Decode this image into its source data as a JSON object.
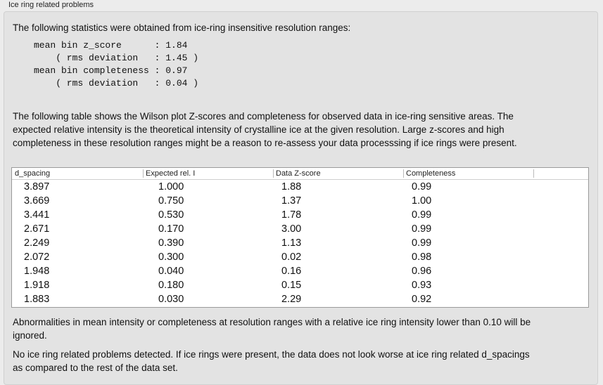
{
  "group_title": "Ice ring related problems",
  "intro": "The following statistics were obtained from ice-ring insensitive resolution ranges:",
  "stats_lines": [
    "mean bin z_score      : 1.84",
    "    ( rms deviation   : 1.45 )",
    "mean bin completeness : 0.97",
    "    ( rms deviation   : 0.04 )"
  ],
  "table_description": "The following table shows the Wilson plot Z-scores and completeness for observed data in ice-ring sensitive areas. The expected relative intensity is the theoretical intensity of crystalline ice at the given resolution. Large z-scores and high completeness in these resolution ranges might be a reason to re-assess your data processsing if ice rings were present.",
  "table": {
    "columns": [
      "d_spacing",
      "Expected rel. I",
      "Data Z-score",
      "Completeness"
    ],
    "rows": [
      [
        "3.897",
        "1.000",
        "1.88",
        "0.99"
      ],
      [
        "3.669",
        "0.750",
        "1.37",
        "1.00"
      ],
      [
        "3.441",
        "0.530",
        "1.78",
        "0.99"
      ],
      [
        "2.671",
        "0.170",
        "3.00",
        "0.99"
      ],
      [
        "2.249",
        "0.390",
        "1.13",
        "0.99"
      ],
      [
        "2.072",
        "0.300",
        "0.02",
        "0.98"
      ],
      [
        "1.948",
        "0.040",
        "0.16",
        "0.96"
      ],
      [
        "1.918",
        "0.180",
        "0.15",
        "0.93"
      ],
      [
        "1.883",
        "0.030",
        "2.29",
        "0.92"
      ]
    ]
  },
  "note": "Abnormalities in mean intensity or completeness at resolution ranges with a relative ice ring intensity lower than 0.10 will be ignored.",
  "conclusion": "No ice ring related problems detected. If ice rings were present, the data does not look worse at ice ring related d_spacings as compared to the rest of the data set."
}
